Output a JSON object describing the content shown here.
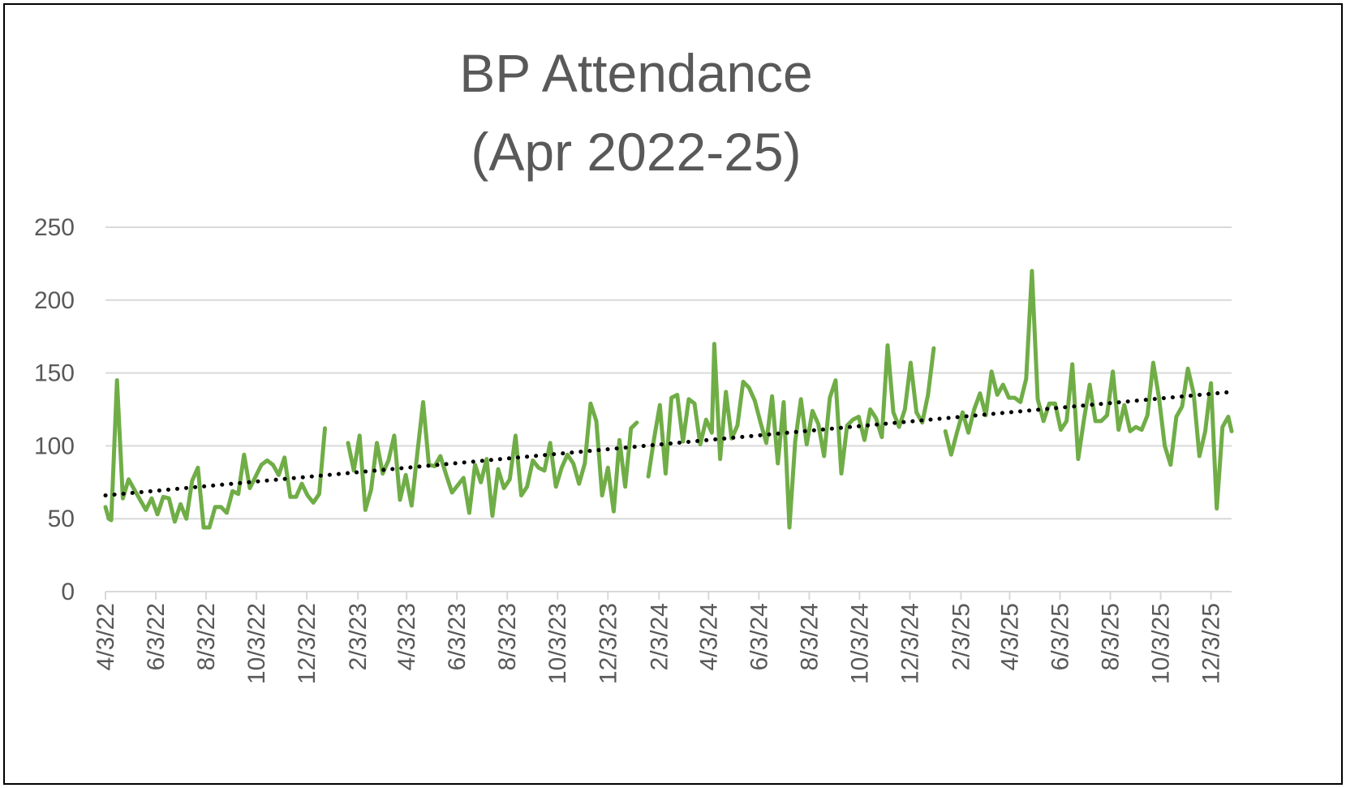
{
  "chart_data": {
    "type": "line",
    "title_lines": [
      "BP Attendance",
      "(Apr 2022-25)"
    ],
    "xlabel": "",
    "ylabel": "",
    "ylim": [
      0,
      250
    ],
    "yticks": [
      0,
      50,
      100,
      150,
      200,
      250
    ],
    "x_tick_labels": [
      "4/3/22",
      "6/3/22",
      "8/3/22",
      "10/3/22",
      "12/3/22",
      "2/3/23",
      "4/3/23",
      "6/3/23",
      "8/3/23",
      "10/3/23",
      "12/3/23",
      "2/3/24",
      "4/3/24",
      "6/3/24",
      "8/3/24",
      "10/3/24",
      "12/3/24",
      "2/3/25",
      "4/3/25",
      "6/3/25",
      "8/3/25",
      "10/3/25",
      "12/3/25"
    ],
    "x_start": "2022-04-03",
    "x_end": "2025-12-28",
    "grid": "horizontal",
    "legend": "none",
    "colors": {
      "series": "#70ad47",
      "trendline": "#000000",
      "grid": "#d9d9d9",
      "text": "#595959"
    },
    "series": [
      {
        "values": [
          [
            "2022-04-03",
            58
          ],
          [
            "2022-04-07",
            50
          ],
          [
            "2022-04-10",
            49
          ],
          [
            "2022-04-17",
            145
          ],
          [
            "2022-04-24",
            64
          ],
          [
            "2022-05-01",
            77
          ],
          [
            "2022-05-08",
            70
          ],
          [
            "2022-05-15",
            63
          ],
          [
            "2022-05-22",
            56
          ],
          [
            "2022-05-29",
            64
          ],
          [
            "2022-06-05",
            53
          ],
          [
            "2022-06-12",
            65
          ],
          [
            "2022-06-19",
            64
          ],
          [
            "2022-06-26",
            48
          ],
          [
            "2022-07-03",
            60
          ],
          [
            "2022-07-10",
            50
          ],
          [
            "2022-07-17",
            76
          ],
          [
            "2022-07-24",
            85
          ],
          [
            "2022-07-31",
            44
          ],
          [
            "2022-08-07",
            44
          ],
          [
            "2022-08-14",
            58
          ],
          [
            "2022-08-21",
            58
          ],
          [
            "2022-08-28",
            54
          ],
          [
            "2022-09-04",
            69
          ],
          [
            "2022-09-11",
            67
          ],
          [
            "2022-09-18",
            94
          ],
          [
            "2022-09-25",
            71
          ],
          [
            "2022-10-02",
            79
          ],
          [
            "2022-10-09",
            87
          ],
          [
            "2022-10-16",
            90
          ],
          [
            "2022-10-23",
            87
          ],
          [
            "2022-10-30",
            80
          ],
          [
            "2022-11-06",
            92
          ],
          [
            "2022-11-13",
            65
          ],
          [
            "2022-11-20",
            65
          ],
          [
            "2022-11-27",
            74
          ],
          [
            "2022-12-04",
            66
          ],
          [
            "2022-12-11",
            61
          ],
          [
            "2022-12-18",
            67
          ],
          [
            "2022-12-25",
            112
          ],
          null,
          [
            "2023-01-22",
            102
          ],
          [
            "2023-01-29",
            83
          ],
          [
            "2023-02-05",
            107
          ],
          [
            "2023-02-12",
            56
          ],
          [
            "2023-02-19",
            70
          ],
          [
            "2023-02-26",
            102
          ],
          [
            "2023-03-05",
            81
          ],
          [
            "2023-03-12",
            90
          ],
          [
            "2023-03-19",
            107
          ],
          [
            "2023-03-26",
            63
          ],
          [
            "2023-04-02",
            80
          ],
          [
            "2023-04-09",
            59
          ],
          [
            "2023-04-16",
            95
          ],
          [
            "2023-04-23",
            130
          ],
          [
            "2023-04-30",
            87
          ],
          [
            "2023-05-07",
            86
          ],
          [
            "2023-05-14",
            93
          ],
          [
            "2023-05-21",
            80
          ],
          [
            "2023-05-28",
            68
          ],
          [
            "2023-06-04",
            73
          ],
          [
            "2023-06-11",
            78
          ],
          [
            "2023-06-18",
            54
          ],
          [
            "2023-06-25",
            87
          ],
          [
            "2023-07-02",
            75
          ],
          [
            "2023-07-09",
            91
          ],
          [
            "2023-07-16",
            52
          ],
          [
            "2023-07-23",
            84
          ],
          [
            "2023-07-30",
            71
          ],
          [
            "2023-08-06",
            77
          ],
          [
            "2023-08-13",
            107
          ],
          [
            "2023-08-20",
            66
          ],
          [
            "2023-08-27",
            72
          ],
          [
            "2023-09-03",
            90
          ],
          [
            "2023-09-10",
            85
          ],
          [
            "2023-09-17",
            83
          ],
          [
            "2023-09-24",
            102
          ],
          [
            "2023-10-01",
            72
          ],
          [
            "2023-10-08",
            85
          ],
          [
            "2023-10-15",
            94
          ],
          [
            "2023-10-22",
            88
          ],
          [
            "2023-10-29",
            74
          ],
          [
            "2023-11-05",
            88
          ],
          [
            "2023-11-12",
            129
          ],
          [
            "2023-11-19",
            117
          ],
          [
            "2023-11-26",
            66
          ],
          [
            "2023-12-03",
            85
          ],
          [
            "2023-12-10",
            55
          ],
          [
            "2023-12-17",
            104
          ],
          [
            "2023-12-24",
            72
          ],
          [
            "2023-12-31",
            112
          ],
          [
            "2024-01-07",
            116
          ],
          null,
          [
            "2024-01-21",
            79
          ],
          [
            "2024-01-28",
            105
          ],
          [
            "2024-02-04",
            128
          ],
          [
            "2024-02-11",
            81
          ],
          [
            "2024-02-18",
            133
          ],
          [
            "2024-02-25",
            135
          ],
          [
            "2024-03-03",
            103
          ],
          [
            "2024-03-10",
            132
          ],
          [
            "2024-03-17",
            129
          ],
          [
            "2024-03-24",
            101
          ],
          [
            "2024-03-31",
            118
          ],
          [
            "2024-04-07",
            109
          ],
          [
            "2024-04-10",
            170
          ],
          [
            "2024-04-17",
            91
          ],
          [
            "2024-04-24",
            137
          ],
          [
            "2024-05-01",
            105
          ],
          [
            "2024-05-08",
            114
          ],
          [
            "2024-05-15",
            144
          ],
          [
            "2024-05-22",
            140
          ],
          [
            "2024-05-29",
            131
          ],
          [
            "2024-06-05",
            116
          ],
          [
            "2024-06-12",
            102
          ],
          [
            "2024-06-19",
            134
          ],
          [
            "2024-06-26",
            88
          ],
          [
            "2024-07-03",
            130
          ],
          [
            "2024-07-10",
            44
          ],
          [
            "2024-07-17",
            103
          ],
          [
            "2024-07-24",
            132
          ],
          [
            "2024-07-31",
            101
          ],
          [
            "2024-08-07",
            124
          ],
          [
            "2024-08-14",
            115
          ],
          [
            "2024-08-21",
            93
          ],
          [
            "2024-08-28",
            133
          ],
          [
            "2024-09-04",
            145
          ],
          [
            "2024-09-11",
            81
          ],
          [
            "2024-09-18",
            114
          ],
          [
            "2024-09-25",
            118
          ],
          [
            "2024-10-02",
            120
          ],
          [
            "2024-10-09",
            104
          ],
          [
            "2024-10-16",
            125
          ],
          [
            "2024-10-23",
            119
          ],
          [
            "2024-10-30",
            106
          ],
          [
            "2024-11-06",
            169
          ],
          [
            "2024-11-13",
            123
          ],
          [
            "2024-11-20",
            113
          ],
          [
            "2024-11-27",
            125
          ],
          [
            "2024-12-04",
            157
          ],
          [
            "2024-12-11",
            123
          ],
          [
            "2024-12-18",
            116
          ],
          [
            "2024-12-25",
            135
          ],
          [
            "2025-01-01",
            167
          ],
          null,
          [
            "2025-01-15",
            110
          ],
          [
            "2025-01-22",
            94
          ],
          [
            "2025-01-29",
            109
          ],
          [
            "2025-02-05",
            123
          ],
          [
            "2025-02-12",
            109
          ],
          [
            "2025-02-19",
            125
          ],
          [
            "2025-02-26",
            136
          ],
          [
            "2025-03-05",
            121
          ],
          [
            "2025-03-12",
            151
          ],
          [
            "2025-03-19",
            135
          ],
          [
            "2025-03-26",
            142
          ],
          [
            "2025-04-02",
            133
          ],
          [
            "2025-04-09",
            133
          ],
          [
            "2025-04-16",
            130
          ],
          [
            "2025-04-23",
            146
          ],
          [
            "2025-04-30",
            220
          ],
          [
            "2025-05-07",
            132
          ],
          [
            "2025-05-14",
            117
          ],
          [
            "2025-05-21",
            129
          ],
          [
            "2025-05-28",
            129
          ],
          [
            "2025-06-04",
            111
          ],
          [
            "2025-06-11",
            117
          ],
          [
            "2025-06-18",
            156
          ],
          [
            "2025-06-25",
            91
          ],
          [
            "2025-07-02",
            118
          ],
          [
            "2025-07-09",
            142
          ],
          [
            "2025-07-16",
            117
          ],
          [
            "2025-07-23",
            117
          ],
          [
            "2025-07-30",
            121
          ],
          [
            "2025-08-06",
            151
          ],
          [
            "2025-08-13",
            111
          ],
          [
            "2025-08-20",
            128
          ],
          [
            "2025-08-27",
            110
          ],
          [
            "2025-09-03",
            113
          ],
          [
            "2025-09-10",
            111
          ],
          [
            "2025-09-17",
            121
          ],
          [
            "2025-09-24",
            157
          ],
          [
            "2025-10-01",
            133
          ],
          [
            "2025-10-08",
            100
          ],
          [
            "2025-10-15",
            87
          ],
          [
            "2025-10-22",
            120
          ],
          [
            "2025-10-29",
            127
          ],
          [
            "2025-11-05",
            153
          ],
          [
            "2025-11-12",
            136
          ],
          [
            "2025-11-19",
            93
          ],
          [
            "2025-11-26",
            110
          ],
          [
            "2025-12-03",
            143
          ],
          [
            "2025-12-10",
            57
          ],
          [
            "2025-12-17",
            113
          ],
          [
            "2025-12-24",
            120
          ],
          [
            "2025-12-28",
            110
          ]
        ]
      }
    ],
    "trendline": {
      "type": "linear",
      "style": "dotted",
      "start": [
        "2022-04-03",
        66
      ],
      "end": [
        "2025-12-28",
        137
      ]
    }
  }
}
